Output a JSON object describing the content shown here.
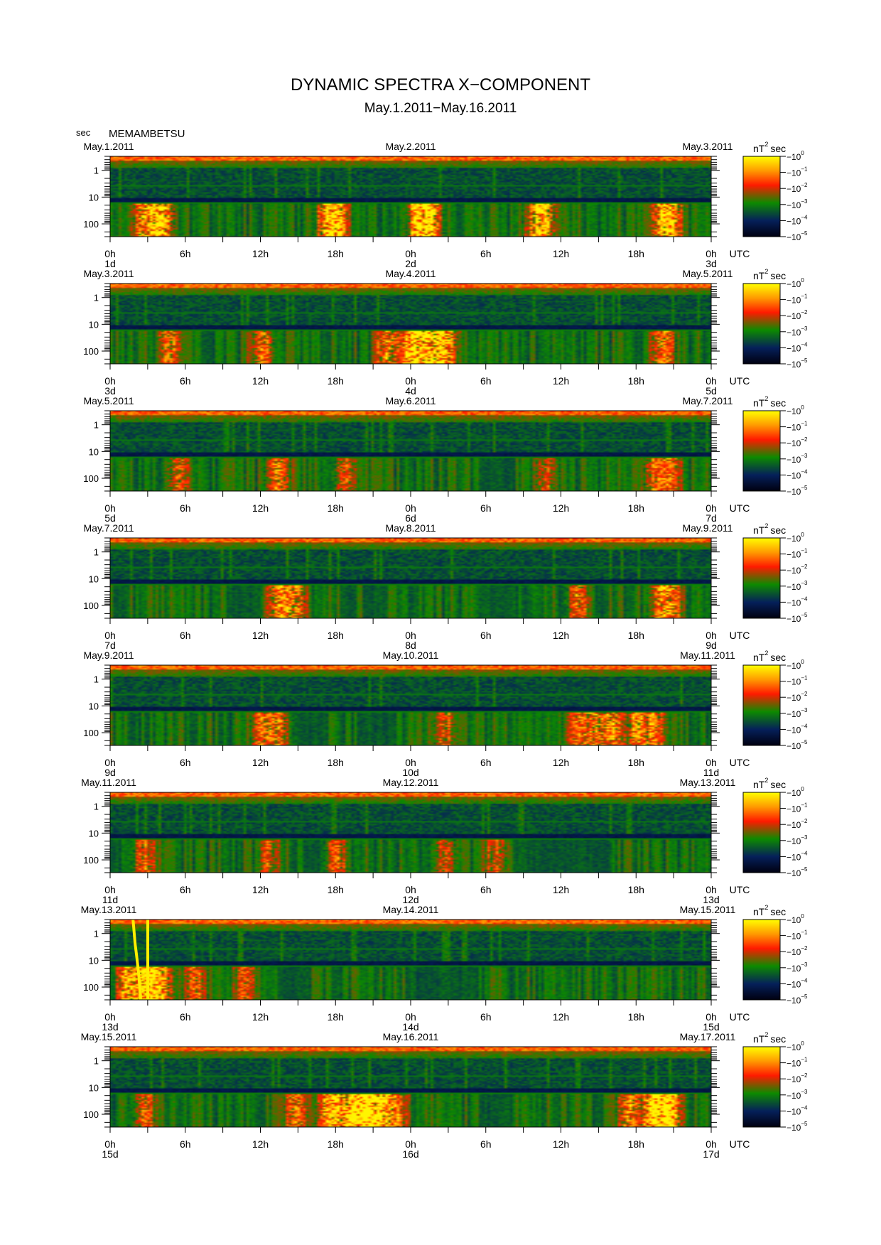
{
  "figure": {
    "title": "DYNAMIC SPECTRA X−COMPONENT",
    "subtitle": "May.1.2011−May.16.2011",
    "y_unit": "sec",
    "station": "MEMAMBETSU",
    "x_unit": "UTC",
    "colorbar_unit": "nT",
    "colorbar_unit_exp": "2",
    "colorbar_unit_tail": "sec"
  },
  "chart_data": {
    "type": "heatmap",
    "y_scale": "log",
    "ylim": [
      300,
      0.3
    ],
    "y_ticks": [
      1,
      10,
      100
    ],
    "y_tick_labels": [
      "1",
      "10",
      "100"
    ],
    "x_tick_labels": [
      "0h",
      "6h",
      "12h",
      "18h",
      "0h",
      "6h",
      "12h",
      "18h",
      "0h"
    ],
    "colorbar": {
      "base": "10",
      "exponents": [
        "0",
        "−1",
        "−2",
        "−3",
        "−4",
        "−5"
      ],
      "colors": [
        "#ffff00",
        "#ff9a00",
        "#ff1a00",
        "#0d8a00",
        "#05205a",
        "#000010"
      ]
    },
    "panels": [
      {
        "start_date": "May.1.2011",
        "mid_date": "May.2.2011",
        "end_date": "May.3.2011",
        "day_labels": [
          "1d",
          "2d",
          "3d"
        ],
        "bursts": [
          [
            4,
            2.0
          ],
          [
            6,
            2.2
          ],
          [
            26,
            1.8
          ],
          [
            27,
            1.6
          ],
          [
            37,
            2.4
          ],
          [
            38,
            2.2
          ],
          [
            51,
            1.5
          ],
          [
            52,
            1.4
          ],
          [
            66,
            1.4
          ],
          [
            67,
            1.6
          ]
        ],
        "quiet": [],
        "event": false
      },
      {
        "start_date": "May.3.2011",
        "mid_date": "May.4.2011",
        "end_date": "May.5.2011",
        "day_labels": [
          "3d",
          "4d",
          "5d"
        ],
        "bursts": [
          [
            7,
            1.5
          ],
          [
            18,
            1.3
          ],
          [
            33,
            1.6
          ],
          [
            36,
            2.4
          ],
          [
            38,
            2.4
          ],
          [
            40,
            2.0
          ],
          [
            66,
            1.6
          ]
        ],
        "quiet": [],
        "event": false
      },
      {
        "start_date": "May.5.2011",
        "mid_date": "May.6.2011",
        "end_date": "May.7.2011",
        "day_labels": [
          "5d",
          "6d",
          "7d"
        ],
        "bursts": [
          [
            8,
            1.3
          ],
          [
            20,
            1.5
          ],
          [
            28,
            1.1
          ],
          [
            52,
            1.0
          ],
          [
            65,
            1.2
          ],
          [
            67,
            1.1
          ]
        ],
        "quiet": [
          [
            44,
            48
          ]
        ],
        "event": false
      },
      {
        "start_date": "May.7.2011",
        "mid_date": "May.8.2011",
        "end_date": "May.9.2011",
        "day_labels": [
          "7d",
          "8d",
          "9d"
        ],
        "bursts": [
          [
            20,
            1.4
          ],
          [
            22,
            1.5
          ],
          [
            56,
            1.3
          ],
          [
            66,
            1.4
          ],
          [
            67,
            1.2
          ]
        ],
        "quiet": [
          [
            14,
            18
          ],
          [
            30,
            33
          ],
          [
            44,
            48
          ]
        ],
        "event": false
      },
      {
        "start_date": "May.9.2011",
        "mid_date": "May.10.2011",
        "end_date": "May.11.2011",
        "day_labels": [
          "9d",
          "10d",
          "11d"
        ],
        "bursts": [
          [
            18,
            1.2
          ],
          [
            20,
            1.3
          ],
          [
            40,
            1.1
          ],
          [
            56,
            1.2
          ],
          [
            58,
            1.3
          ],
          [
            60,
            1.4
          ],
          [
            63,
            1.5
          ],
          [
            65,
            1.3
          ]
        ],
        "quiet": [
          [
            22,
            26
          ],
          [
            30,
            34
          ]
        ],
        "event": false
      },
      {
        "start_date": "May.11.2011",
        "mid_date": "May.12.2011",
        "end_date": "May.13.2011",
        "day_labels": [
          "11d",
          "12d",
          "13d"
        ],
        "bursts": [
          [
            4,
            1.2
          ],
          [
            19,
            1.0
          ],
          [
            27,
            1.1
          ],
          [
            40,
            1.0
          ],
          [
            46,
            1.0
          ]
        ],
        "quiet": [
          [
            23,
            26
          ],
          [
            48,
            60
          ]
        ],
        "event": false
      },
      {
        "start_date": "May.13.2011",
        "mid_date": "May.14.2011",
        "end_date": "May.15.2011",
        "day_labels": [
          "13d",
          "14d",
          "15d"
        ],
        "bursts": [
          [
            2,
            1.8
          ],
          [
            4,
            2.0
          ],
          [
            5,
            1.6
          ],
          [
            6,
            1.3
          ],
          [
            10,
            1.2
          ],
          [
            16,
            1.0
          ]
        ],
        "quiet": [
          [
            20,
            24
          ],
          [
            36,
            44
          ]
        ],
        "event": true
      },
      {
        "start_date": "May.15.2011",
        "mid_date": "May.16.2011",
        "end_date": "May.17.2011",
        "day_labels": [
          "15d",
          "16d",
          "17d"
        ],
        "bursts": [
          [
            4,
            1.2
          ],
          [
            22,
            1.4
          ],
          [
            26,
            1.4
          ],
          [
            27,
            1.5
          ],
          [
            29,
            1.6
          ],
          [
            30,
            1.8
          ],
          [
            31,
            1.9
          ],
          [
            32,
            1.7
          ],
          [
            34,
            1.5
          ],
          [
            62,
            1.6
          ],
          [
            65,
            1.8
          ],
          [
            66,
            1.9
          ],
          [
            67,
            1.7
          ]
        ],
        "quiet": [
          [
            44,
            48
          ]
        ],
        "event": false
      }
    ]
  }
}
